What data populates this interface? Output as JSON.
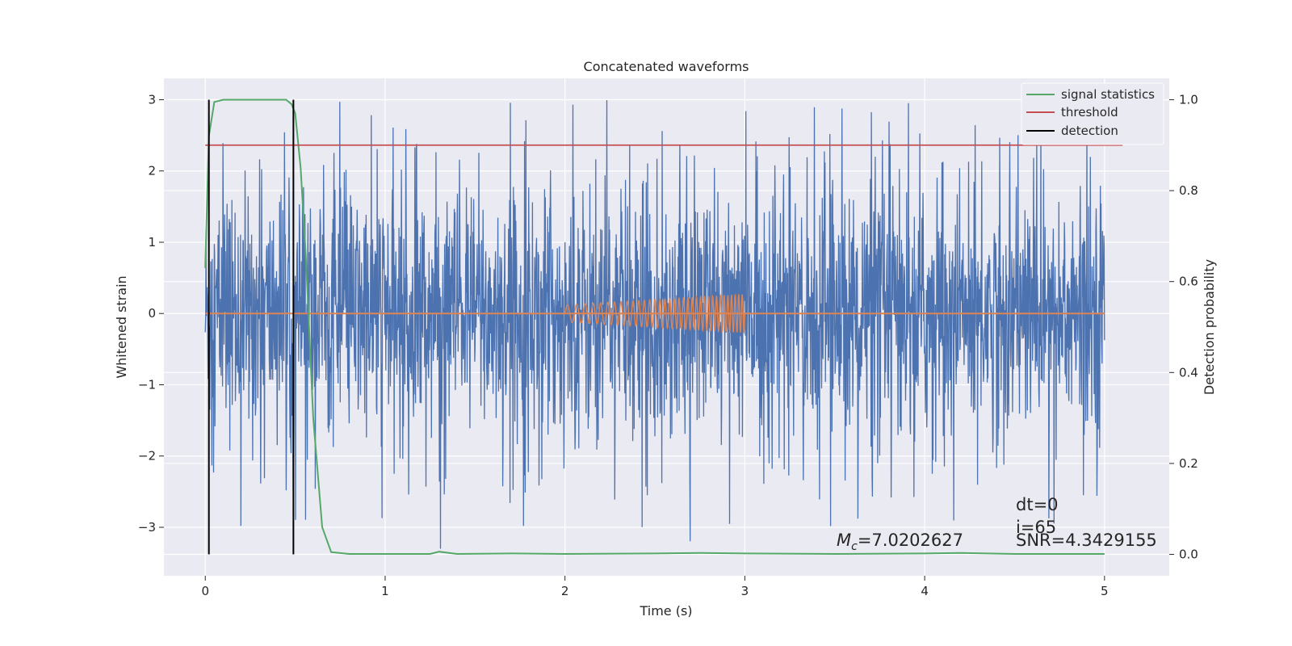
{
  "chart_data": {
    "type": "line",
    "title": "Concatenated waveforms",
    "xlabel": "Time (s)",
    "ylabel": "Whitened strain",
    "y2label": "Detection probability",
    "xlim": [
      -0.23,
      5.36
    ],
    "ylim": [
      -3.68,
      3.3
    ],
    "y2lim": [
      -0.047,
      1.047
    ],
    "xticks": [
      0,
      1,
      2,
      3,
      4,
      5
    ],
    "yticks": [
      -3,
      -2,
      -1,
      0,
      1,
      2,
      3
    ],
    "y2ticks": [
      0.0,
      0.2,
      0.4,
      0.6,
      0.8,
      1.0
    ],
    "xtick_labels": [
      "0",
      "1",
      "2",
      "3",
      "4",
      "5"
    ],
    "ytick_labels": [
      "−3",
      "−2",
      "−1",
      "0",
      "1",
      "2",
      "3"
    ],
    "y2tick_labels": [
      "0.0",
      "0.2",
      "0.4",
      "0.6",
      "0.8",
      "1.0"
    ],
    "grid": true,
    "legend_position": "top-right",
    "colors": {
      "strain": "#4c72b0",
      "template": "#dd8452",
      "signal": "#55a868",
      "threshold": "#c44e52",
      "detection": "#000000",
      "background": "#eaeaf2",
      "grid": "#ffffff"
    },
    "strain_series": {
      "x_start": 0,
      "x_end": 5,
      "amplitude_range": [
        -3.3,
        3.0
      ]
    },
    "template_series": {
      "x": [
        2,
        3
      ],
      "amplitude": [
        0.12,
        0.27
      ],
      "baseline": 0
    },
    "signal_statistics": {
      "name": "signal statistics",
      "axis": "right",
      "x": [
        0.0,
        0.02,
        0.05,
        0.1,
        0.2,
        0.3,
        0.4,
        0.45,
        0.48,
        0.5,
        0.53,
        0.56,
        0.6,
        0.65,
        0.7,
        0.8,
        1.0,
        1.25,
        1.3,
        1.4,
        1.7,
        2.0,
        2.5,
        2.75,
        3.0,
        3.5,
        4.0,
        4.2,
        4.5,
        5.0
      ],
      "y": [
        0.63,
        0.92,
        0.995,
        1.0,
        1.0,
        1.0,
        1.0,
        1.0,
        0.99,
        0.97,
        0.85,
        0.65,
        0.3,
        0.06,
        0.005,
        0.001,
        0.001,
        0.001,
        0.006,
        0.001,
        0.002,
        0.001,
        0.002,
        0.003,
        0.002,
        0.001,
        0.002,
        0.003,
        0.001,
        0.001
      ]
    },
    "threshold": {
      "name": "threshold",
      "axis": "right",
      "value": 0.9,
      "x": [
        0,
        5.1
      ]
    },
    "detections": {
      "name": "detection",
      "x": [
        0.02,
        0.49
      ],
      "y_range": [
        -3.38,
        3.0
      ]
    },
    "legend": [
      "signal statistics",
      "threshold",
      "detection"
    ],
    "annotations": {
      "mc_symbol": "M",
      "mc_subscript": "c",
      "mc_value": "=7.0202627",
      "dt": "dt=0",
      "i": "i=65",
      "snr": "SNR=4.3429155"
    }
  }
}
